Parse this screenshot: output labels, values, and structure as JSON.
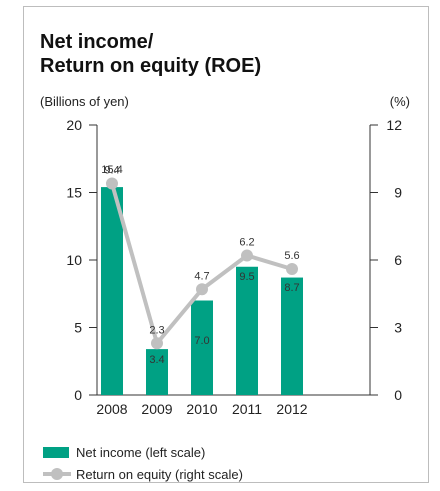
{
  "title_lines": [
    "Net income/",
    "Return on equity (ROE)"
  ],
  "colors": {
    "bar": "#00a184",
    "line": "#c0c0c0",
    "axis": "#333333",
    "text": "#222222"
  },
  "chart_data": {
    "type": "bar",
    "categories": [
      "2008",
      "2009",
      "2010",
      "2011",
      "2012"
    ],
    "series": [
      {
        "name": "Net income (left scale)",
        "type": "bar",
        "axis": "left",
        "values": [
          15.4,
          3.4,
          7.0,
          9.5,
          8.7
        ]
      },
      {
        "name": "Return on equity (right scale)",
        "type": "line",
        "axis": "right",
        "values": [
          9.4,
          2.3,
          4.7,
          6.2,
          5.6
        ]
      }
    ],
    "ylabel": "(Billions of yen)",
    "y2label": "(%)",
    "ylim": [
      0,
      20
    ],
    "y2lim": [
      0,
      12
    ],
    "yticks": [
      0,
      5,
      10,
      15,
      20
    ],
    "y2ticks": [
      0,
      3,
      6,
      9,
      12
    ],
    "grid": false,
    "legend_placement": "bottom-left"
  }
}
